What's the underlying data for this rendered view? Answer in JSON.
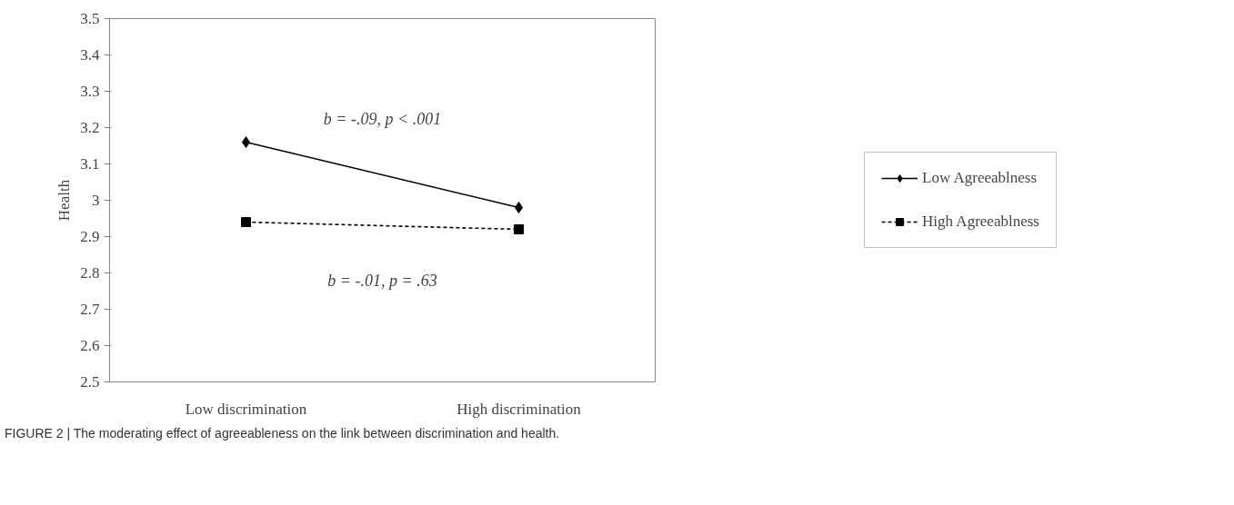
{
  "chart_data": {
    "type": "line",
    "ylabel": "Health",
    "categories": [
      "Low discrimination",
      "High discrimination"
    ],
    "series": [
      {
        "name": "Low Agreeablness",
        "color": "#000000",
        "values": [
          3.16,
          2.98
        ],
        "marker": "diamond",
        "line_style": "solid"
      },
      {
        "name": "High Agreeablness",
        "color": "#000000",
        "values": [
          2.94,
          2.92
        ],
        "marker": "square",
        "line_style": "dashed"
      }
    ],
    "ylim": [
      2.5,
      3.5
    ],
    "yticks": [
      2.5,
      2.6,
      2.7,
      2.8,
      2.9,
      {
        "value": 3.0,
        "label": "3"
      },
      3.1,
      3.2,
      3.3,
      3.4,
      3.5
    ],
    "grid": false,
    "legend": "right",
    "annotations": [
      "b = -.09, p < .001",
      "b = -.01, p = .63",
      "FIGURE 2 | The moderating effect of agreeableness on the link between discrimination and health."
    ]
  }
}
